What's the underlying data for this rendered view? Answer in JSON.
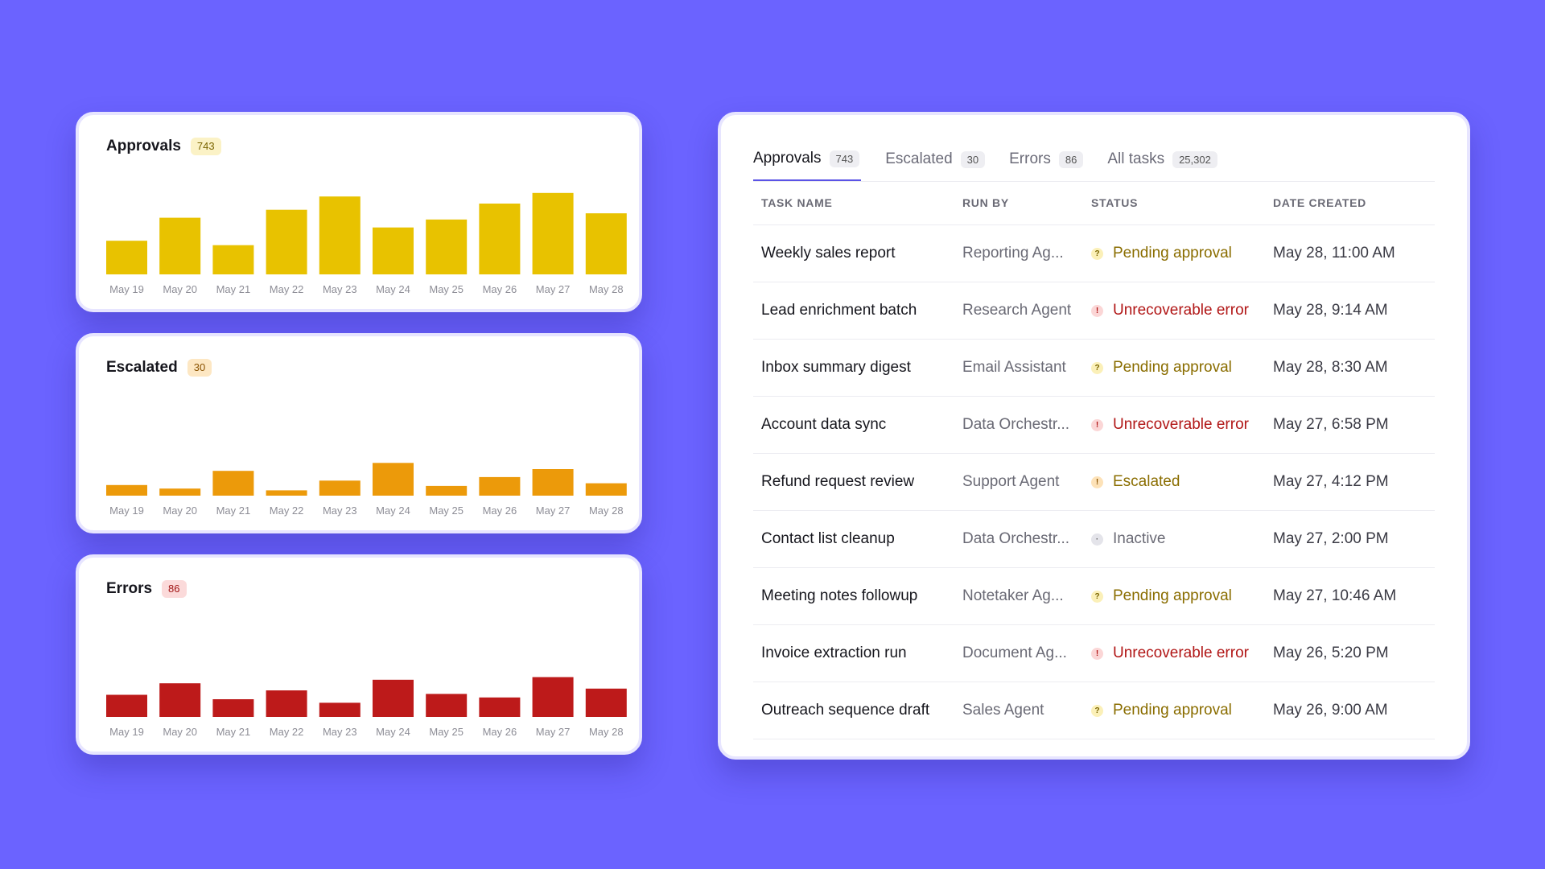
{
  "charts": [
    {
      "id": "approvals",
      "title": "Approvals",
      "count": "743",
      "color": "#e8c200",
      "badge_bg": "#fbf2c6",
      "badge_fg": "#7a6500",
      "chart_data": {
        "type": "bar",
        "categories": [
          "May 19",
          "May 20",
          "May 21",
          "May 22",
          "May 23",
          "May 24",
          "May 25",
          "May 26",
          "May 27",
          "May 28"
        ],
        "values": [
          38,
          64,
          33,
          73,
          88,
          53,
          62,
          80,
          92,
          69
        ],
        "ylim": [
          0,
          100
        ]
      }
    },
    {
      "id": "escalated",
      "title": "Escalated",
      "count": "30",
      "color": "#ec9a0a",
      "badge_bg": "#fde7c3",
      "badge_fg": "#8a5200",
      "chart_data": {
        "type": "bar",
        "categories": [
          "May 19",
          "May 20",
          "May 21",
          "May 22",
          "May 23",
          "May 24",
          "May 25",
          "May 26",
          "May 27",
          "May 28"
        ],
        "values": [
          12,
          8,
          28,
          6,
          17,
          37,
          11,
          21,
          30,
          14
        ],
        "ylim": [
          0,
          100
        ]
      }
    },
    {
      "id": "errors",
      "title": "Errors",
      "count": "86",
      "color": "#bd1a1a",
      "badge_bg": "#fbdada",
      "badge_fg": "#a11616",
      "chart_data": {
        "type": "bar",
        "categories": [
          "May 19",
          "May 20",
          "May 21",
          "May 22",
          "May 23",
          "May 24",
          "May 25",
          "May 26",
          "May 27",
          "May 28"
        ],
        "values": [
          25,
          38,
          20,
          30,
          16,
          42,
          26,
          22,
          45,
          32
        ],
        "ylim": [
          0,
          100
        ]
      }
    }
  ],
  "tabs": [
    {
      "label": "Approvals",
      "count": "743",
      "active": true
    },
    {
      "label": "Escalated",
      "count": "30",
      "active": false
    },
    {
      "label": "Errors",
      "count": "86",
      "active": false
    },
    {
      "label": "All tasks",
      "count": "25,302",
      "active": false
    }
  ],
  "table": {
    "headers": [
      "TASK NAME",
      "RUN BY",
      "STATUS",
      "DATE CREATED"
    ],
    "status_styles": {
      "pending": {
        "glyph": "?",
        "dot_bg": "#fbf0b8",
        "dot_fg": "#7a6500",
        "text": "#8a6d00"
      },
      "error": {
        "glyph": "!",
        "dot_bg": "#fbd6d6",
        "dot_fg": "#b11616",
        "text": "#b11616"
      },
      "escalated": {
        "glyph": "!",
        "dot_bg": "#fde2b8",
        "dot_fg": "#8a5200",
        "text": "#8a6d00"
      },
      "inactive": {
        "glyph": "·",
        "dot_bg": "#e4e4ea",
        "dot_fg": "#666",
        "text": "#6a6a75"
      }
    },
    "rows": [
      {
        "name": "Weekly sales report",
        "run_by": "Reporting Ag...",
        "status": "Pending approval",
        "kind": "pending",
        "date": "May 28, 11:00 AM"
      },
      {
        "name": "Lead enrichment batch",
        "run_by": "Research Agent",
        "status": "Unrecoverable error",
        "kind": "error",
        "date": "May 28, 9:14 AM"
      },
      {
        "name": "Inbox summary digest",
        "run_by": "Email Assistant",
        "status": "Pending approval",
        "kind": "pending",
        "date": "May 28, 8:30 AM"
      },
      {
        "name": "Account data sync",
        "run_by": "Data Orchestr...",
        "status": "Unrecoverable error",
        "kind": "error",
        "date": "May 27, 6:58 PM"
      },
      {
        "name": "Refund request review",
        "run_by": "Support Agent",
        "status": "Escalated",
        "kind": "escalated",
        "date": "May 27, 4:12 PM"
      },
      {
        "name": "Contact list cleanup",
        "run_by": "Data Orchestr...",
        "status": "Inactive",
        "kind": "inactive",
        "date": "May 27, 2:00 PM"
      },
      {
        "name": "Meeting notes followup",
        "run_by": "Notetaker Ag...",
        "status": "Pending approval",
        "kind": "pending",
        "date": "May 27, 10:46 AM"
      },
      {
        "name": "Invoice extraction run",
        "run_by": "Document Ag...",
        "status": "Unrecoverable error",
        "kind": "error",
        "date": "May 26, 5:20 PM"
      },
      {
        "name": "Outreach sequence draft",
        "run_by": "Sales Agent",
        "status": "Pending approval",
        "kind": "pending",
        "date": "May 26, 9:00 AM"
      }
    ]
  }
}
